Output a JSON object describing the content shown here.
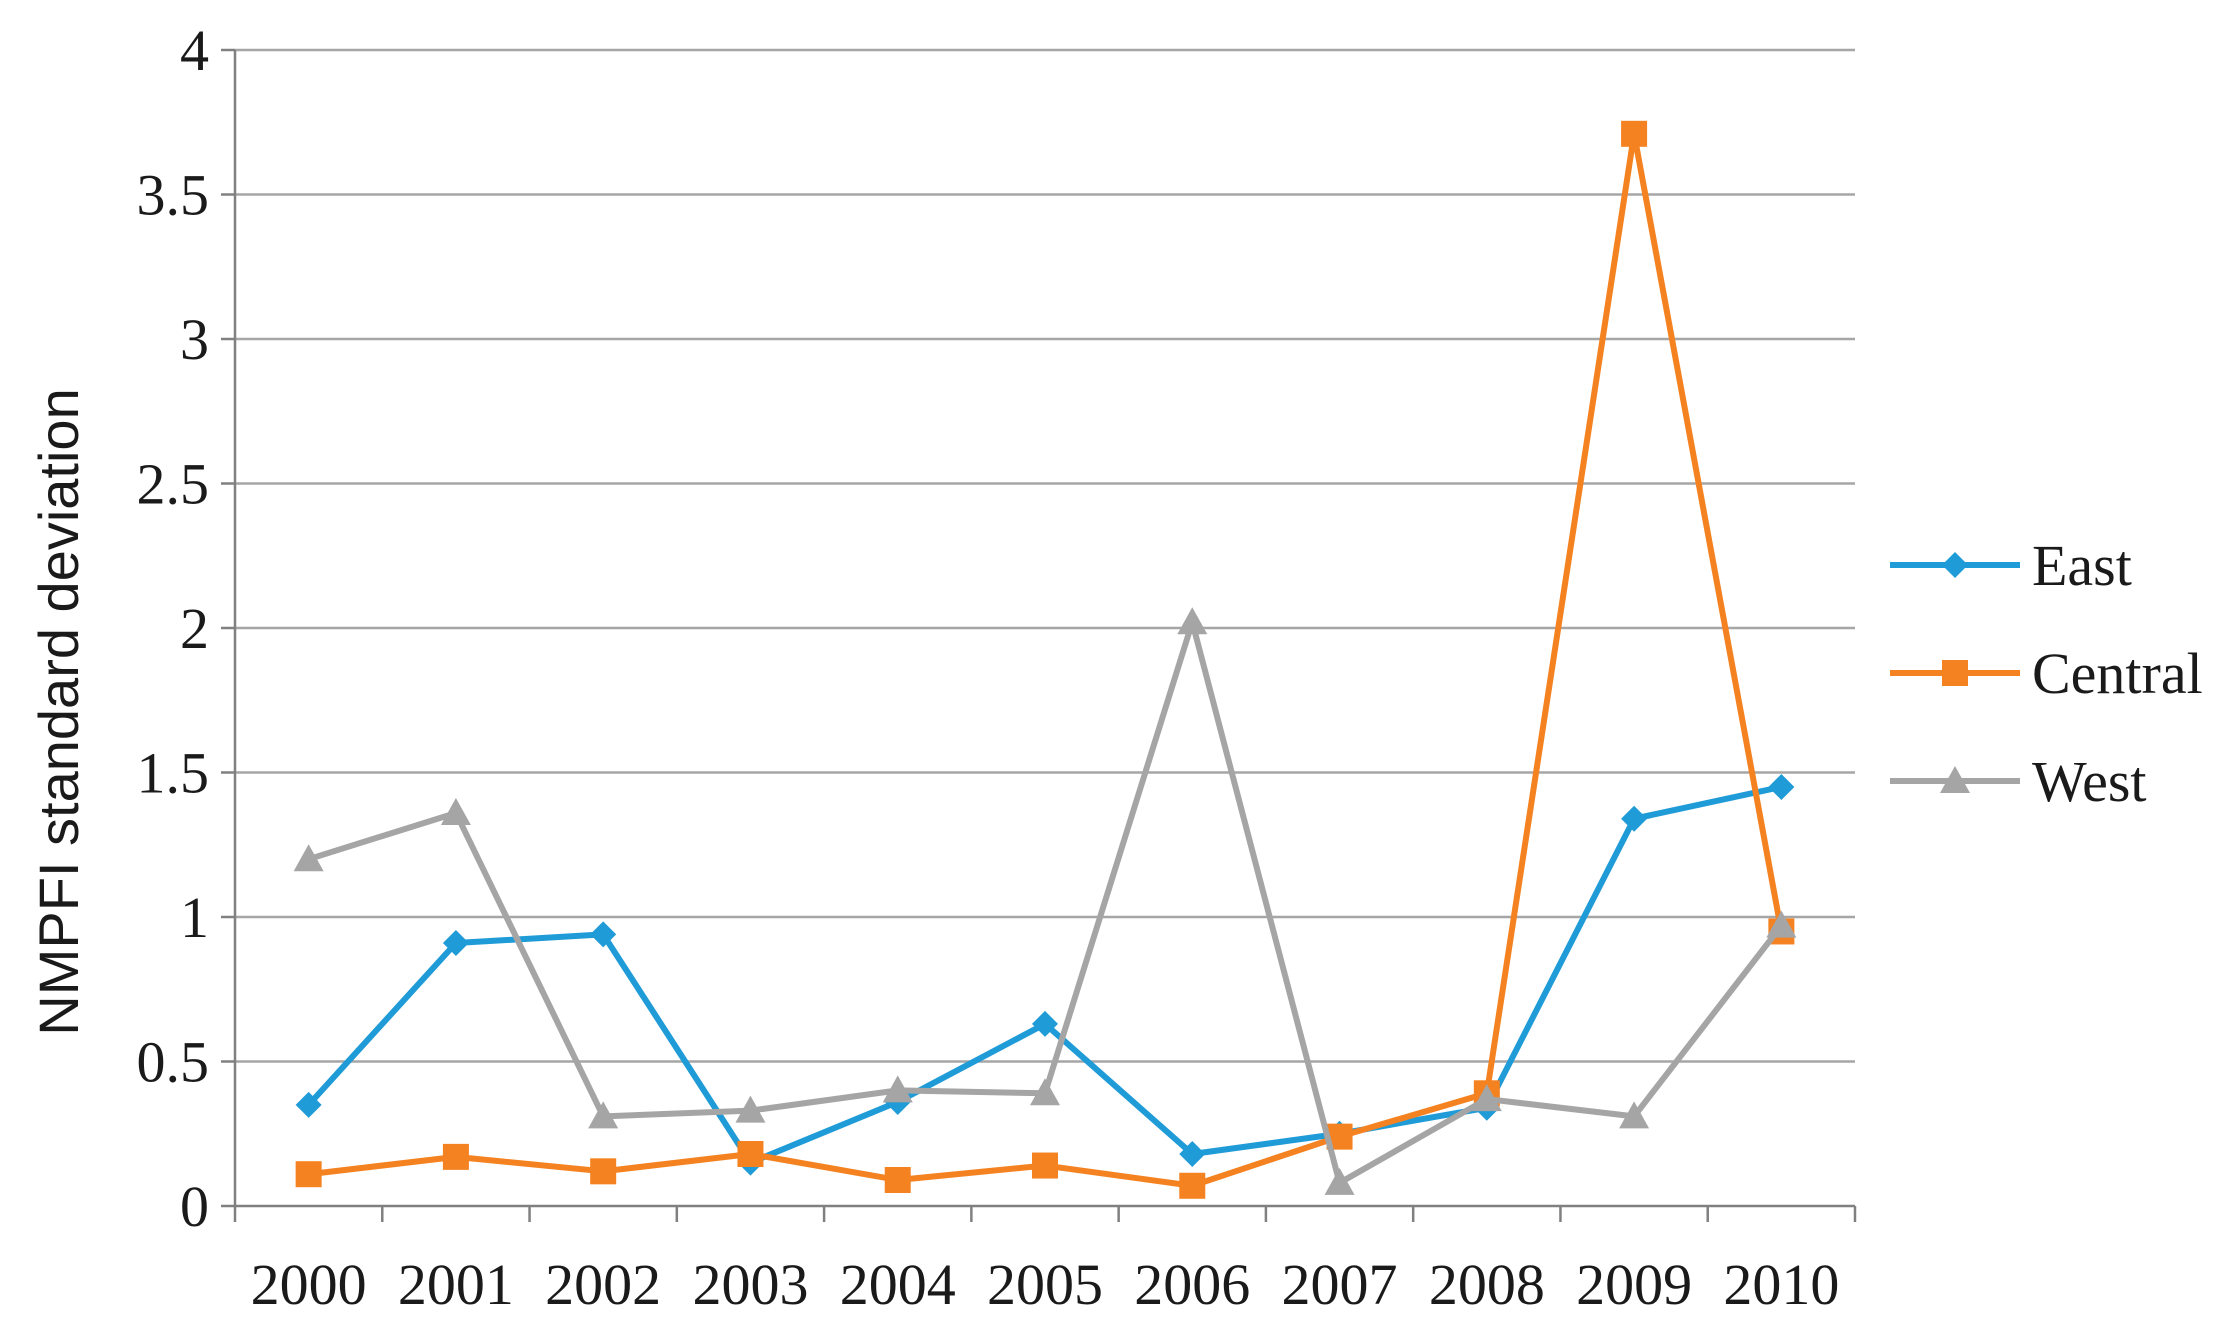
{
  "chart_data": {
    "type": "line",
    "title": "",
    "xlabel": "",
    "ylabel": "NMPFI  standard deviation",
    "categories": [
      "2000",
      "2001",
      "2002",
      "2003",
      "2004",
      "2005",
      "2006",
      "2007",
      "2008",
      "2009",
      "2010"
    ],
    "ylim": [
      0,
      4
    ],
    "yticks": [
      "0",
      "0.5",
      "1",
      "1.5",
      "2",
      "2.5",
      "3",
      "3.5",
      "4"
    ],
    "grid": true,
    "legend_position": "right",
    "series": [
      {
        "name": "East",
        "color": "#1f9bd7",
        "marker": "diamond",
        "values": [
          0.35,
          0.91,
          0.94,
          0.15,
          0.36,
          0.63,
          0.18,
          0.25,
          0.34,
          1.34,
          1.45
        ]
      },
      {
        "name": "Central",
        "color": "#f58220",
        "marker": "square",
        "values": [
          0.11,
          0.17,
          0.12,
          0.18,
          0.09,
          0.14,
          0.07,
          0.24,
          0.39,
          3.71,
          0.95
        ]
      },
      {
        "name": "West",
        "color": "#a5a5a5",
        "marker": "triangle",
        "values": [
          1.2,
          1.36,
          0.31,
          0.33,
          0.4,
          0.39,
          2.02,
          0.08,
          0.37,
          0.31,
          0.97
        ]
      }
    ]
  }
}
